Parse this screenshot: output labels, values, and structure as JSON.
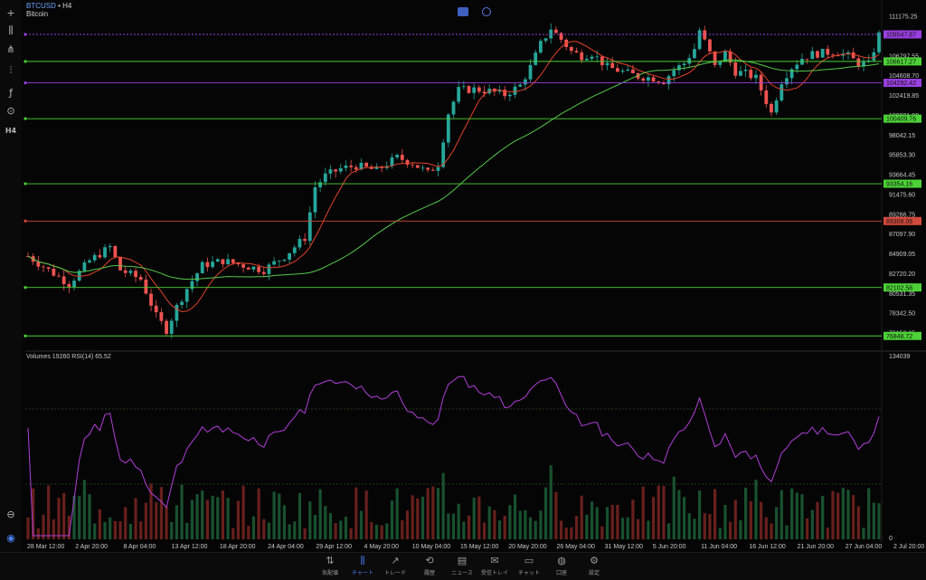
{
  "header": {
    "symbol": "BTCUSD",
    "separator": " • ",
    "timeframe": "H4",
    "name": "Bitcoin"
  },
  "toolbar": {
    "tools": [
      {
        "name": "crosshair-icon",
        "glyph": "+"
      },
      {
        "name": "candlestick-icon",
        "glyph": "⫼"
      },
      {
        "name": "indicators-icon",
        "glyph": "⋔"
      },
      {
        "name": "objects-icon",
        "glyph": "⫶"
      },
      {
        "name": "function-icon",
        "glyph": "ƒ"
      },
      {
        "name": "shapes-icon",
        "glyph": "⊙"
      },
      {
        "name": "timeframe-label",
        "glyph": "H4"
      }
    ],
    "bottom_tools": [
      {
        "name": "magnifier-icon",
        "glyph": "⊖"
      },
      {
        "name": "trade-logo-icon",
        "glyph": "◉"
      }
    ]
  },
  "nav": {
    "items": [
      {
        "label": "気配値",
        "icon": "⇅"
      },
      {
        "label": "チャート",
        "icon": "⫼"
      },
      {
        "label": "トレード",
        "icon": "↗"
      },
      {
        "label": "履歴",
        "icon": "⟲"
      },
      {
        "label": "ニュース",
        "icon": "▤"
      },
      {
        "label": "受信トレイ",
        "icon": "✉"
      },
      {
        "label": "チャット",
        "icon": "▭"
      },
      {
        "label": "口座",
        "icon": "◍"
      },
      {
        "label": "設定",
        "icon": "⚙"
      }
    ],
    "active_index": 1
  },
  "colors": {
    "bg": "#050505",
    "bull": "#26a69a",
    "bear": "#ef5350",
    "ma_fast": "#e2432b",
    "ma_slow": "#54c94a",
    "rsi": "#b03fd8",
    "hline_green": "#4cd137",
    "hline_purple": "#9a3fe0",
    "hline_red": "#d24a3c"
  },
  "chart_data": {
    "type": "candlestick",
    "price_axis_ticks": [
      "111175.25",
      "108986.40",
      "106797.55",
      "104608.70",
      "102419.85",
      "100231.00",
      "98042.15",
      "95853.30",
      "93664.45",
      "91475.60",
      "89286.75",
      "87097.90",
      "84909.05",
      "82720.20",
      "80531.35",
      "78342.50",
      "76153.65"
    ],
    "volume_axis_ticks": [
      "134039",
      "0"
    ],
    "dates": [
      "28 Mar 12:00",
      "2 Apr 20:00",
      "8 Apr 04:00",
      "13 Apr 12:00",
      "18 Apr 20:00",
      "24 Apr 04:00",
      "29 Apr 12:00",
      "4 May 20:00",
      "10 May 04:00",
      "15 May 12:00",
      "20 May 20:00",
      "26 May 04:00",
      "31 May 12:00",
      "5 Jun 20:00",
      "11 Jun 04:00",
      "16 Jun 12:00",
      "21 Jun 20:00",
      "27 Jun 04:00",
      "2 Jul 20:00"
    ],
    "ylim": [
      75500,
      112100
    ],
    "horizontal_levels": [
      {
        "value": 109547.87,
        "label": "109547.87",
        "color": "#9a3fe0"
      },
      {
        "value": 106617.27,
        "label": "106617.27",
        "color": "#4cd137"
      },
      {
        "value": 104292.42,
        "label": "104292.42",
        "color": "#9a3fe0"
      },
      {
        "value": 100409.76,
        "label": "100409.76",
        "color": "#4cd137"
      },
      {
        "value": 93354.16,
        "label": "93354.16",
        "color": "#4cd137"
      },
      {
        "value": 89308.06,
        "label": "89308.06",
        "color": "#d24a3c"
      },
      {
        "value": 82102.58,
        "label": "82102.58",
        "color": "#4cd137"
      },
      {
        "value": 76848.72,
        "label": "76848.72",
        "color": "#4cd137"
      }
    ],
    "close_points": [
      [
        0,
        85500
      ],
      [
        4,
        84000
      ],
      [
        8,
        82500
      ],
      [
        12,
        85000
      ],
      [
        16,
        86500
      ],
      [
        18,
        84000
      ],
      [
        22,
        83000
      ],
      [
        25,
        79000
      ],
      [
        27,
        77500
      ],
      [
        29,
        80000
      ],
      [
        31,
        82000
      ],
      [
        34,
        84500
      ],
      [
        38,
        85000
      ],
      [
        42,
        84500
      ],
      [
        46,
        84000
      ],
      [
        50,
        85500
      ],
      [
        54,
        87500
      ],
      [
        56,
        93000
      ],
      [
        58,
        94200
      ],
      [
        61,
        95000
      ],
      [
        64,
        95300
      ],
      [
        68,
        94800
      ],
      [
        72,
        96200
      ],
      [
        75,
        95600
      ],
      [
        78,
        94500
      ],
      [
        80,
        95500
      ],
      [
        82,
        101000
      ],
      [
        84,
        103500
      ],
      [
        87,
        103600
      ],
      [
        90,
        103400
      ],
      [
        93,
        103000
      ],
      [
        96,
        104000
      ],
      [
        98,
        106000
      ],
      [
        100,
        108500
      ],
      [
        102,
        110200
      ],
      [
        104,
        109000
      ],
      [
        106,
        107700
      ],
      [
        108,
        107200
      ],
      [
        110,
        107500
      ],
      [
        113,
        106000
      ],
      [
        116,
        105500
      ],
      [
        119,
        105000
      ],
      [
        122,
        104800
      ],
      [
        124,
        104500
      ],
      [
        126,
        105700
      ],
      [
        128,
        106400
      ],
      [
        130,
        108000
      ],
      [
        131,
        110000
      ],
      [
        133,
        107500
      ],
      [
        134,
        106000
      ],
      [
        136,
        107500
      ],
      [
        138,
        105500
      ],
      [
        140,
        105300
      ],
      [
        142,
        104800
      ],
      [
        144,
        102300
      ],
      [
        145,
        101000
      ],
      [
        147,
        104500
      ],
      [
        149,
        106000
      ],
      [
        151,
        107000
      ],
      [
        153,
        107400
      ],
      [
        156,
        107600
      ],
      [
        158,
        107600
      ],
      [
        160,
        107200
      ],
      [
        162,
        106400
      ],
      [
        164,
        106300
      ],
      [
        166,
        109500
      ]
    ],
    "rsi": {
      "name": "RSI(14)",
      "value": "65.52",
      "levels": [
        70,
        30
      ]
    },
    "volume": {
      "label": "Volumes",
      "value": "19260"
    }
  }
}
